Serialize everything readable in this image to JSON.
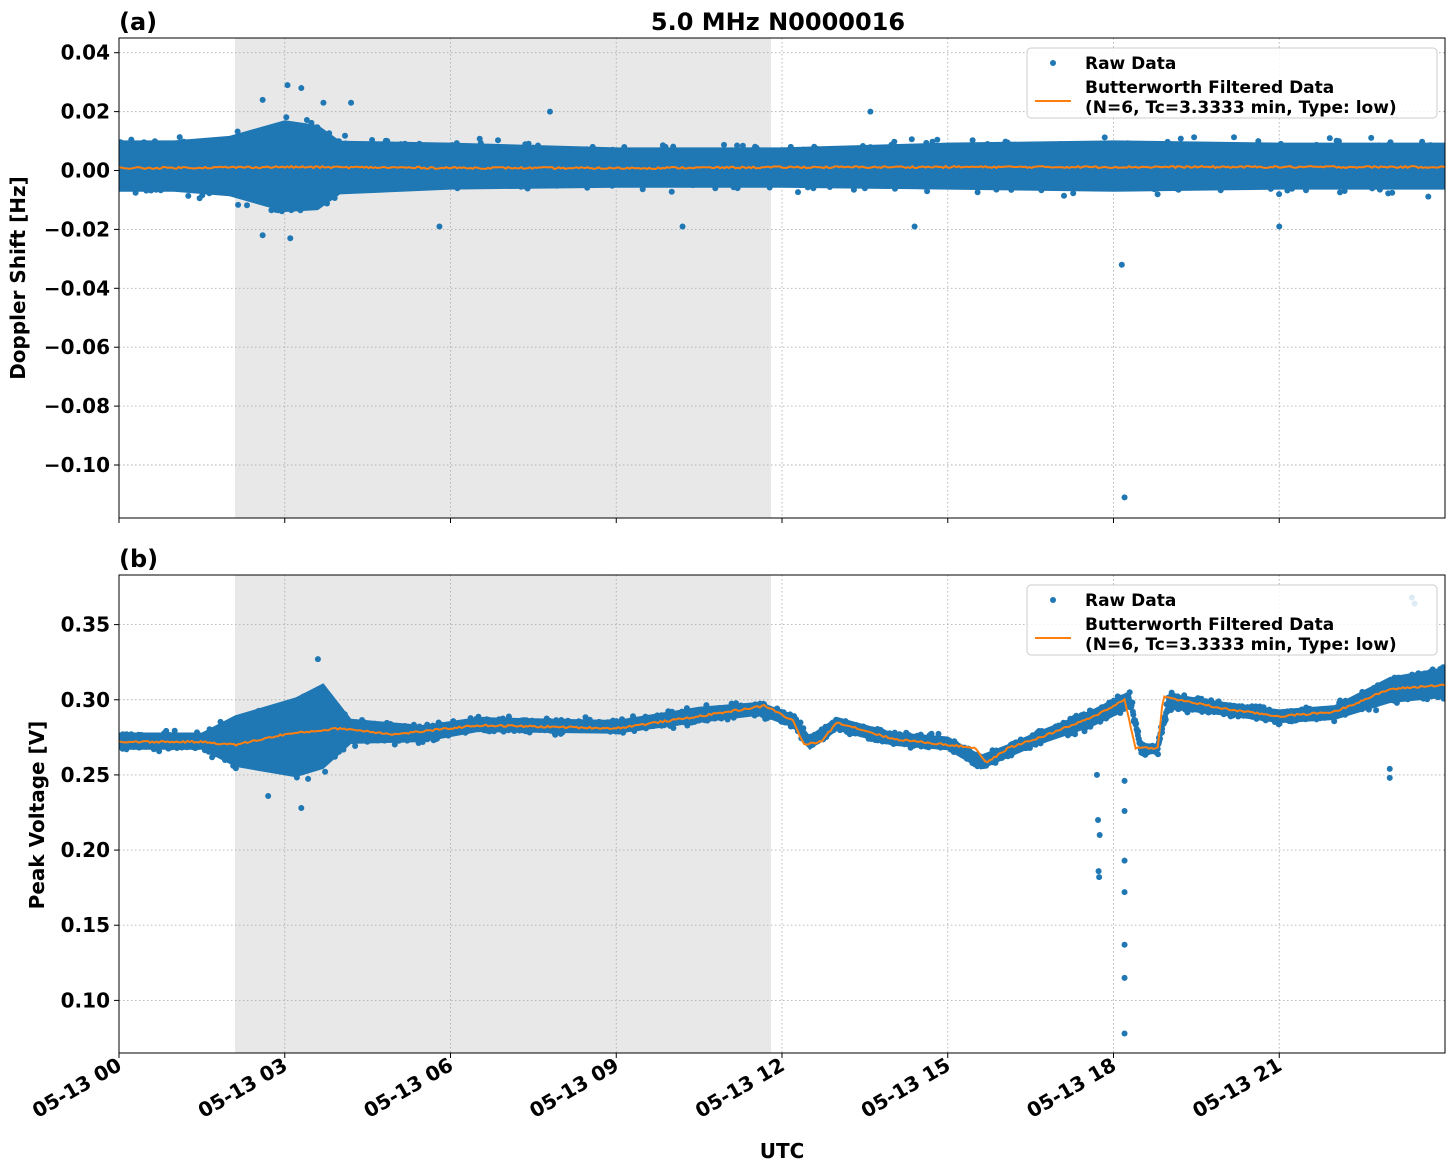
{
  "figure": {
    "title": "5.0 MHz N0000016",
    "xlabel": "UTC",
    "x_tick_labels": [
      "05-13 00",
      "05-13 03",
      "05-13 06",
      "05-13 09",
      "05-13 12",
      "05-13 15",
      "05-13 18",
      "05-13 21"
    ],
    "colors": {
      "raw": "#1f77b4",
      "filtered": "#ff7f0e",
      "night_shade": "#e8e8e8",
      "grid": "#b0b0b0"
    }
  },
  "chart_data": [
    {
      "type": "scatter",
      "panel_label": "(a)",
      "ylabel": "Doppler Shift [Hz]",
      "xlim": [
        0,
        24
      ],
      "ylim": [
        -0.118,
        0.045
      ],
      "y_ticks": [
        0.04,
        0.02,
        0.0,
        -0.02,
        -0.04,
        -0.06,
        -0.08,
        -0.1
      ],
      "y_tick_labels": [
        "0.04",
        "0.02",
        "0.00",
        "−0.02",
        "−0.04",
        "−0.06",
        "−0.08",
        "−0.10"
      ],
      "grid": true,
      "legend_position": "top-right",
      "shaded_interval_hours": [
        2.1,
        11.8
      ],
      "series": [
        {
          "name": "Raw Data",
          "kind": "points",
          "band": [
            [
              0,
              -0.01,
              0.013
            ],
            [
              1,
              -0.01,
              0.013
            ],
            [
              2,
              -0.012,
              0.015
            ],
            [
              3,
              -0.019,
              0.022
            ],
            [
              3.6,
              -0.018,
              0.02
            ],
            [
              4,
              -0.011,
              0.013
            ],
            [
              6,
              -0.009,
              0.012
            ],
            [
              9,
              -0.008,
              0.01
            ],
            [
              12,
              -0.008,
              0.01
            ],
            [
              15,
              -0.009,
              0.012
            ],
            [
              18,
              -0.01,
              0.013
            ],
            [
              21,
              -0.009,
              0.012
            ],
            [
              24,
              -0.009,
              0.012
            ]
          ],
          "outliers": [
            [
              2.6,
              0.024
            ],
            [
              3.05,
              0.029
            ],
            [
              3.3,
              0.028
            ],
            [
              3.7,
              0.023
            ],
            [
              4.2,
              0.023
            ],
            [
              7.8,
              0.02
            ],
            [
              13.6,
              0.02
            ],
            [
              2.6,
              -0.022
            ],
            [
              3.1,
              -0.023
            ],
            [
              5.8,
              -0.019
            ],
            [
              10.2,
              -0.019
            ],
            [
              18.15,
              -0.032
            ],
            [
              18.2,
              -0.111
            ],
            [
              21.0,
              -0.019
            ],
            [
              14.4,
              -0.019
            ]
          ]
        },
        {
          "name": "Butterworth Filtered Data\n(N=6, Tc=3.3333 min, Type: low)",
          "kind": "line",
          "points": [
            [
              0,
              0.0008
            ],
            [
              3,
              0.0012
            ],
            [
              6,
              0.0009
            ],
            [
              9,
              0.0008
            ],
            [
              12,
              0.0011
            ],
            [
              15,
              0.0012
            ],
            [
              18,
              0.0012
            ],
            [
              21,
              0.0012
            ],
            [
              24,
              0.0012
            ]
          ]
        }
      ]
    },
    {
      "type": "scatter",
      "panel_label": "(b)",
      "ylabel": "Peak Voltage [V]",
      "xlim": [
        0,
        24
      ],
      "ylim": [
        0.065,
        0.383
      ],
      "y_ticks": [
        0.35,
        0.3,
        0.25,
        0.2,
        0.15,
        0.1
      ],
      "y_tick_labels": [
        "0.35",
        "0.30",
        "0.25",
        "0.20",
        "0.15",
        "0.10"
      ],
      "grid": true,
      "legend_position": "top-right",
      "shaded_interval_hours": [
        2.1,
        11.8
      ],
      "series": [
        {
          "name": "Raw Data",
          "kind": "points",
          "band": [
            [
              0,
              0.265,
              0.28
            ],
            [
              1.5,
              0.265,
              0.28
            ],
            [
              2.1,
              0.25,
              0.295
            ],
            [
              3.2,
              0.24,
              0.31
            ],
            [
              3.7,
              0.245,
              0.32
            ],
            [
              4.2,
              0.268,
              0.29
            ],
            [
              5.5,
              0.27,
              0.285
            ],
            [
              6.5,
              0.277,
              0.29
            ],
            [
              9,
              0.276,
              0.288
            ],
            [
              10.5,
              0.283,
              0.297
            ],
            [
              11.6,
              0.288,
              0.3
            ],
            [
              12.2,
              0.28,
              0.292
            ],
            [
              12.5,
              0.265,
              0.278
            ],
            [
              13,
              0.278,
              0.29
            ],
            [
              14,
              0.268,
              0.28
            ],
            [
              15,
              0.265,
              0.277
            ],
            [
              15.6,
              0.252,
              0.265
            ],
            [
              16.1,
              0.26,
              0.272
            ],
            [
              16.6,
              0.268,
              0.28
            ],
            [
              17.6,
              0.28,
              0.295
            ],
            [
              18.3,
              0.292,
              0.308
            ],
            [
              18.5,
              0.262,
              0.272
            ],
            [
              18.8,
              0.263,
              0.272
            ],
            [
              19,
              0.292,
              0.306
            ],
            [
              20,
              0.288,
              0.3
            ],
            [
              21,
              0.283,
              0.295
            ],
            [
              22,
              0.285,
              0.298
            ],
            [
              23,
              0.295,
              0.318
            ],
            [
              24,
              0.298,
              0.325
            ]
          ],
          "outliers": [
            [
              17.7,
              0.25
            ],
            [
              17.72,
              0.22
            ],
            [
              17.75,
              0.21
            ],
            [
              17.73,
              0.186
            ],
            [
              17.74,
              0.182
            ],
            [
              18.2,
              0.246
            ],
            [
              18.2,
              0.226
            ],
            [
              18.2,
              0.193
            ],
            [
              18.2,
              0.172
            ],
            [
              18.2,
              0.137
            ],
            [
              18.2,
              0.115
            ],
            [
              18.2,
              0.078
            ],
            [
              23.0,
              0.248
            ],
            [
              23.0,
              0.254
            ],
            [
              23.4,
              0.368
            ],
            [
              23.45,
              0.364
            ],
            [
              3.6,
              0.327
            ],
            [
              3.3,
              0.228
            ],
            [
              2.7,
              0.236
            ]
          ]
        },
        {
          "name": "Butterworth Filtered Data\n(N=6, Tc=3.3333 min, Type: low)",
          "kind": "line",
          "points": [
            [
              0,
              0.272
            ],
            [
              1.5,
              0.272
            ],
            [
              2.1,
              0.27
            ],
            [
              3,
              0.277
            ],
            [
              4,
              0.281
            ],
            [
              5,
              0.277
            ],
            [
              6,
              0.281
            ],
            [
              6.5,
              0.283
            ],
            [
              9,
              0.281
            ],
            [
              10.5,
              0.289
            ],
            [
              11.7,
              0.296
            ],
            [
              12.2,
              0.286
            ],
            [
              12.4,
              0.27
            ],
            [
              12.7,
              0.272
            ],
            [
              13,
              0.285
            ],
            [
              14,
              0.274
            ],
            [
              15,
              0.27
            ],
            [
              15.5,
              0.268
            ],
            [
              15.7,
              0.258
            ],
            [
              16.1,
              0.268
            ],
            [
              16.6,
              0.274
            ],
            [
              17.6,
              0.288
            ],
            [
              18.2,
              0.3
            ],
            [
              18.4,
              0.268
            ],
            [
              18.8,
              0.268
            ],
            [
              18.9,
              0.302
            ],
            [
              20,
              0.294
            ],
            [
              21,
              0.289
            ],
            [
              22,
              0.292
            ],
            [
              23,
              0.307
            ],
            [
              24,
              0.31
            ]
          ]
        }
      ]
    }
  ]
}
